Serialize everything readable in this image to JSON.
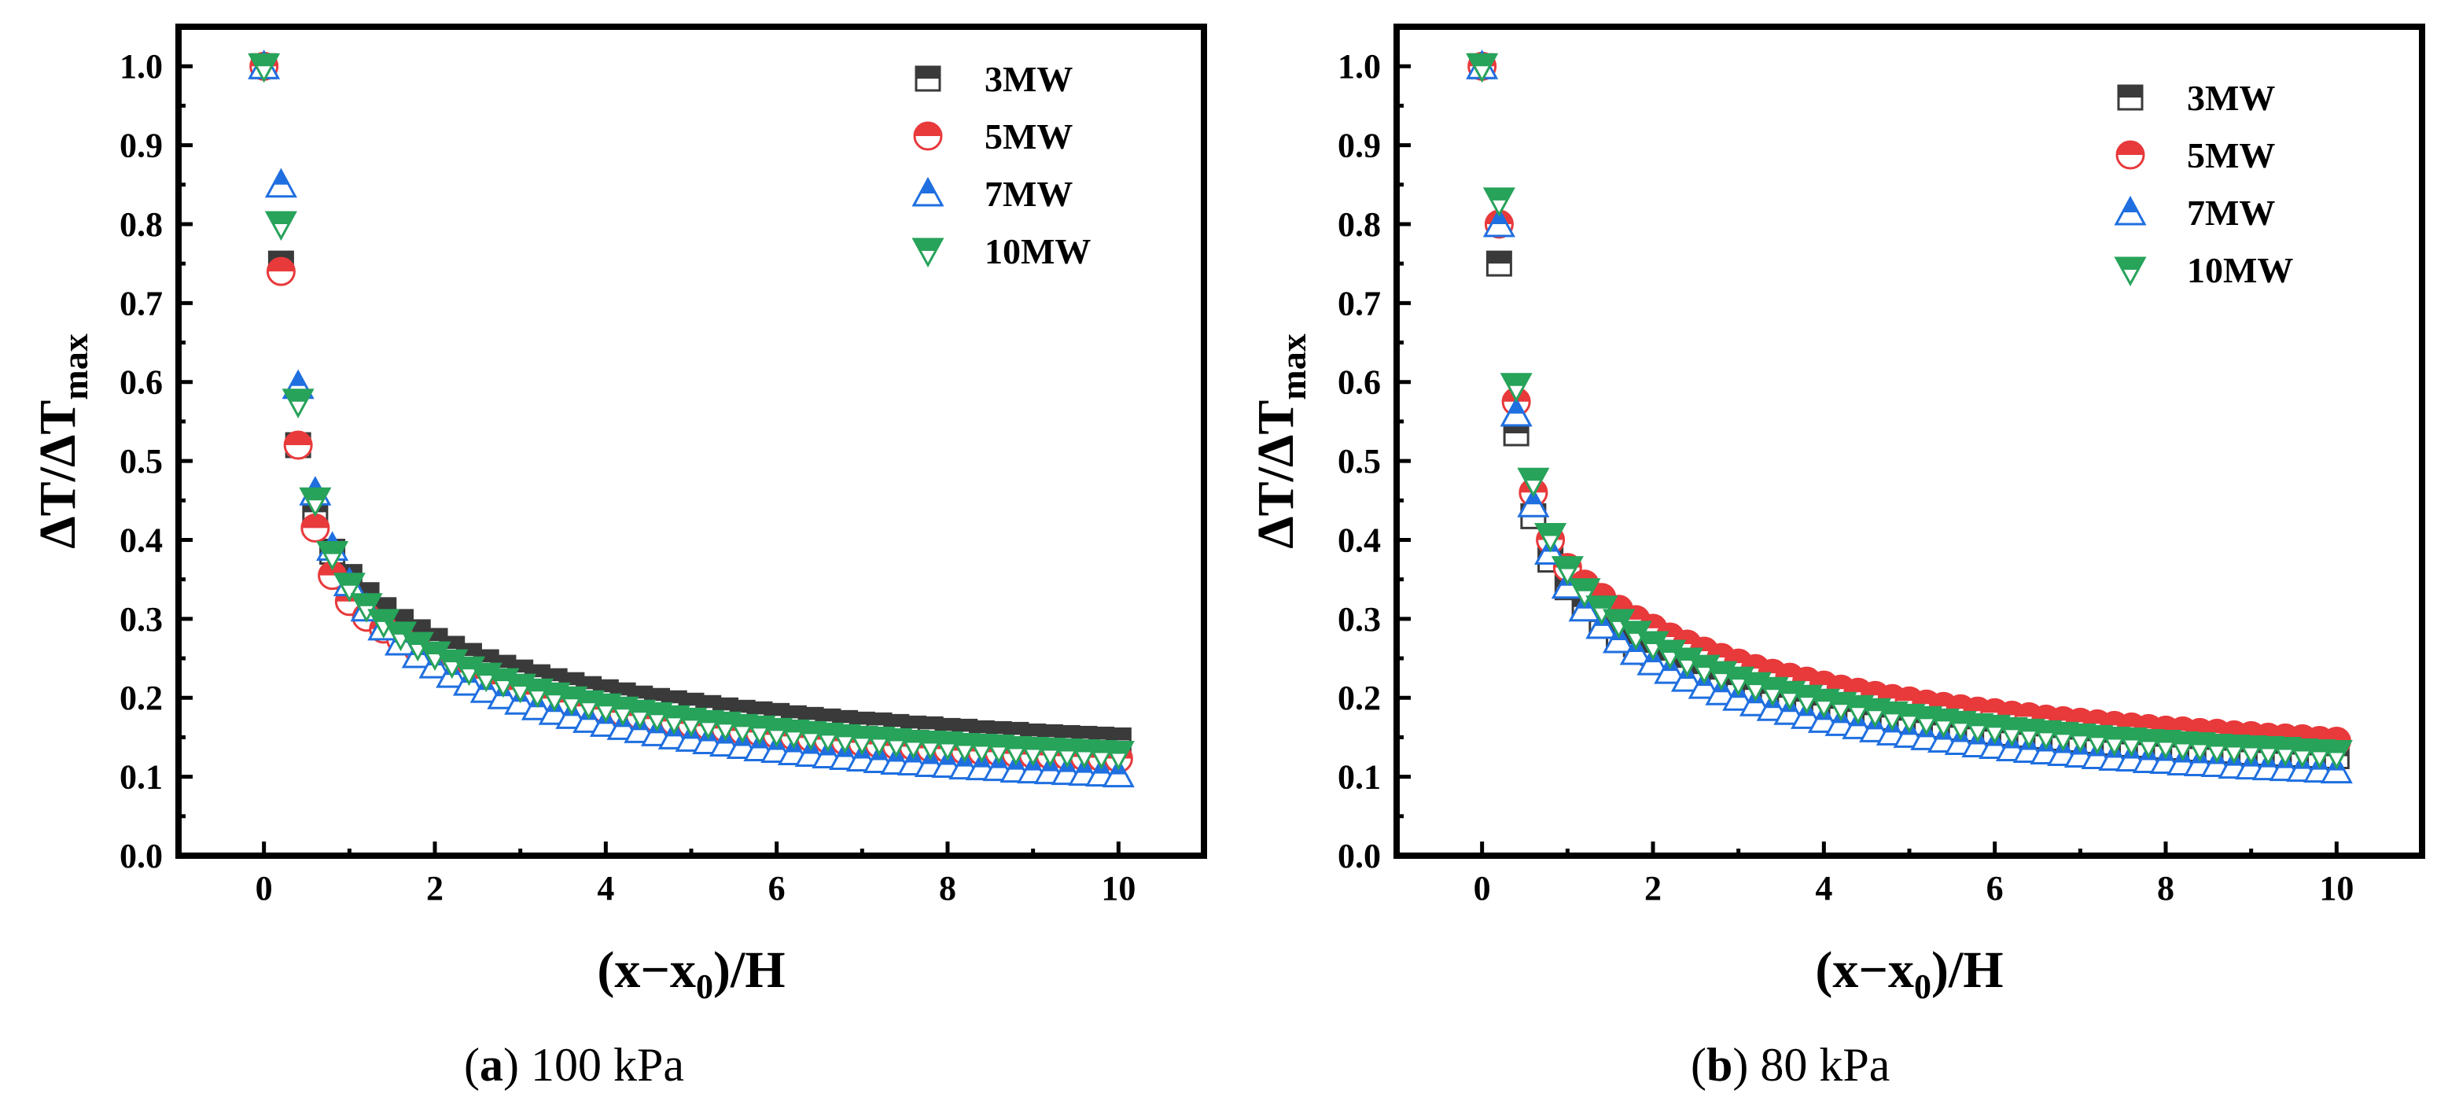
{
  "colors": {
    "3MW": "#3a3a3a",
    "5MW": "#e8393b",
    "7MW": "#1f6fe0",
    "10MW": "#27a35a",
    "axis": "#000000",
    "background": "#ffffff"
  },
  "captions": [
    {
      "letter": "a",
      "text": " 100 kPa"
    },
    {
      "letter": "b",
      "text": " 80 kPa"
    }
  ],
  "chart_data": [
    {
      "type": "scatter",
      "xlabel": "(x−x0)/H",
      "ylabel": "ΔT/ΔTmax",
      "xlim": [
        -1,
        11
      ],
      "ylim": [
        0,
        1.05
      ],
      "xticks": [
        0,
        2,
        4,
        6,
        8,
        10
      ],
      "yticks": [
        0.0,
        0.1,
        0.2,
        0.3,
        0.4,
        0.5,
        0.6,
        0.7,
        0.8,
        0.9,
        1.0
      ],
      "legend_position": "top-right",
      "x": [
        0,
        0.2,
        0.4,
        0.6,
        0.8,
        1.0,
        1.2,
        1.4,
        1.6,
        1.8,
        2.0,
        2.2,
        2.4,
        2.6,
        2.8,
        3.0,
        3.2,
        3.4,
        3.6,
        3.8,
        4.0,
        4.2,
        4.4,
        4.6,
        4.8,
        5.0,
        5.2,
        5.4,
        5.6,
        5.8,
        6.0,
        6.2,
        6.4,
        6.6,
        6.8,
        7.0,
        7.2,
        7.4,
        7.6,
        7.8,
        8.0,
        8.2,
        8.4,
        8.6,
        8.8,
        9.0,
        9.2,
        9.4,
        9.6,
        9.8,
        10.0
      ],
      "series": [
        {
          "name": "3MW",
          "marker": "square",
          "values": [
            1.0,
            0.75,
            0.52,
            0.435,
            0.385,
            0.353,
            0.33,
            0.311,
            0.296,
            0.283,
            0.272,
            0.262,
            0.253,
            0.245,
            0.238,
            0.232,
            0.226,
            0.221,
            0.216,
            0.211,
            0.207,
            0.203,
            0.199,
            0.196,
            0.193,
            0.19,
            0.187,
            0.184,
            0.181,
            0.179,
            0.177,
            0.174,
            0.172,
            0.17,
            0.168,
            0.166,
            0.165,
            0.163,
            0.161,
            0.16,
            0.158,
            0.157,
            0.155,
            0.154,
            0.153,
            0.151,
            0.15,
            0.149,
            0.148,
            0.147,
            0.146
          ]
        },
        {
          "name": "5MW",
          "marker": "circle",
          "values": [
            1.0,
            0.74,
            0.52,
            0.415,
            0.355,
            0.322,
            0.302,
            0.287,
            0.274,
            0.262,
            0.251,
            0.241,
            0.232,
            0.224,
            0.217,
            0.21,
            0.204,
            0.199,
            0.194,
            0.189,
            0.185,
            0.181,
            0.177,
            0.173,
            0.17,
            0.167,
            0.164,
            0.161,
            0.158,
            0.156,
            0.153,
            0.151,
            0.149,
            0.147,
            0.145,
            0.143,
            0.141,
            0.139,
            0.138,
            0.136,
            0.135,
            0.133,
            0.132,
            0.131,
            0.129,
            0.128,
            0.127,
            0.126,
            0.125,
            0.124,
            0.123
          ]
        },
        {
          "name": "7MW",
          "marker": "triangle-up",
          "values": [
            1.0,
            0.85,
            0.595,
            0.46,
            0.39,
            0.345,
            0.313,
            0.289,
            0.27,
            0.254,
            0.241,
            0.229,
            0.219,
            0.21,
            0.202,
            0.195,
            0.188,
            0.182,
            0.177,
            0.172,
            0.167,
            0.163,
            0.159,
            0.155,
            0.151,
            0.148,
            0.145,
            0.142,
            0.139,
            0.136,
            0.134,
            0.131,
            0.129,
            0.127,
            0.125,
            0.123,
            0.121,
            0.119,
            0.118,
            0.116,
            0.115,
            0.113,
            0.112,
            0.111,
            0.109,
            0.108,
            0.107,
            0.106,
            0.105,
            0.104,
            0.103
          ]
        },
        {
          "name": "10MW",
          "marker": "triangle-down",
          "values": [
            1.0,
            0.8,
            0.575,
            0.45,
            0.382,
            0.342,
            0.316,
            0.296,
            0.28,
            0.267,
            0.255,
            0.245,
            0.236,
            0.228,
            0.221,
            0.214,
            0.208,
            0.203,
            0.198,
            0.193,
            0.189,
            0.185,
            0.181,
            0.178,
            0.174,
            0.171,
            0.168,
            0.166,
            0.163,
            0.161,
            0.158,
            0.156,
            0.154,
            0.152,
            0.15,
            0.148,
            0.147,
            0.145,
            0.143,
            0.142,
            0.141,
            0.139,
            0.138,
            0.137,
            0.135,
            0.134,
            0.133,
            0.132,
            0.131,
            0.13,
            0.129
          ]
        }
      ]
    },
    {
      "type": "scatter",
      "xlabel": "(x−x0)/H",
      "ylabel": "ΔT/ΔTmax",
      "xlim": [
        -1,
        11
      ],
      "ylim": [
        0,
        1.05
      ],
      "xticks": [
        0,
        2,
        4,
        6,
        8,
        10
      ],
      "yticks": [
        0.0,
        0.1,
        0.2,
        0.3,
        0.4,
        0.5,
        0.6,
        0.7,
        0.8,
        0.9,
        1.0
      ],
      "legend_position": "top-right",
      "x": [
        0,
        0.2,
        0.4,
        0.6,
        0.8,
        1.0,
        1.2,
        1.4,
        1.6,
        1.8,
        2.0,
        2.2,
        2.4,
        2.6,
        2.8,
        3.0,
        3.2,
        3.4,
        3.6,
        3.8,
        4.0,
        4.2,
        4.4,
        4.6,
        4.8,
        5.0,
        5.2,
        5.4,
        5.6,
        5.8,
        6.0,
        6.2,
        6.4,
        6.6,
        6.8,
        7.0,
        7.2,
        7.4,
        7.6,
        7.8,
        8.0,
        8.2,
        8.4,
        8.6,
        8.8,
        9.0,
        9.2,
        9.4,
        9.6,
        9.8,
        10.0
      ],
      "series": [
        {
          "name": "3MW",
          "marker": "square",
          "values": [
            1.0,
            0.75,
            0.535,
            0.43,
            0.375,
            0.34,
            0.315,
            0.296,
            0.281,
            0.268,
            0.257,
            0.247,
            0.238,
            0.23,
            0.223,
            0.216,
            0.21,
            0.205,
            0.2,
            0.195,
            0.19,
            0.186,
            0.182,
            0.178,
            0.175,
            0.171,
            0.168,
            0.165,
            0.162,
            0.16,
            0.157,
            0.155,
            0.153,
            0.151,
            0.149,
            0.147,
            0.145,
            0.143,
            0.141,
            0.14,
            0.138,
            0.137,
            0.135,
            0.134,
            0.133,
            0.131,
            0.13,
            0.129,
            0.128,
            0.127,
            0.126
          ]
        },
        {
          "name": "5MW",
          "marker": "circle",
          "values": [
            1.0,
            0.8,
            0.575,
            0.46,
            0.4,
            0.365,
            0.344,
            0.327,
            0.312,
            0.299,
            0.288,
            0.277,
            0.268,
            0.259,
            0.251,
            0.244,
            0.237,
            0.231,
            0.226,
            0.221,
            0.216,
            0.211,
            0.207,
            0.203,
            0.199,
            0.196,
            0.192,
            0.189,
            0.186,
            0.183,
            0.181,
            0.178,
            0.176,
            0.173,
            0.171,
            0.169,
            0.167,
            0.165,
            0.163,
            0.161,
            0.159,
            0.158,
            0.156,
            0.155,
            0.153,
            0.152,
            0.15,
            0.149,
            0.148,
            0.146,
            0.145
          ]
        },
        {
          "name": "7MW",
          "marker": "triangle-up",
          "values": [
            1.0,
            0.8,
            0.56,
            0.445,
            0.385,
            0.342,
            0.313,
            0.291,
            0.273,
            0.258,
            0.245,
            0.234,
            0.224,
            0.215,
            0.207,
            0.2,
            0.193,
            0.187,
            0.182,
            0.177,
            0.172,
            0.168,
            0.164,
            0.16,
            0.156,
            0.153,
            0.15,
            0.147,
            0.144,
            0.141,
            0.139,
            0.136,
            0.134,
            0.132,
            0.13,
            0.128,
            0.126,
            0.124,
            0.123,
            0.121,
            0.12,
            0.118,
            0.117,
            0.116,
            0.114,
            0.113,
            0.112,
            0.111,
            0.11,
            0.109,
            0.108
          ]
        },
        {
          "name": "10MW",
          "marker": "triangle-down",
          "values": [
            1.0,
            0.83,
            0.595,
            0.475,
            0.405,
            0.363,
            0.335,
            0.313,
            0.296,
            0.281,
            0.268,
            0.257,
            0.247,
            0.238,
            0.23,
            0.223,
            0.216,
            0.21,
            0.205,
            0.2,
            0.195,
            0.191,
            0.187,
            0.183,
            0.179,
            0.176,
            0.173,
            0.17,
            0.167,
            0.164,
            0.162,
            0.159,
            0.157,
            0.155,
            0.153,
            0.151,
            0.149,
            0.147,
            0.146,
            0.144,
            0.143,
            0.141,
            0.14,
            0.138,
            0.137,
            0.136,
            0.135,
            0.134,
            0.132,
            0.131,
            0.13
          ]
        }
      ]
    }
  ]
}
